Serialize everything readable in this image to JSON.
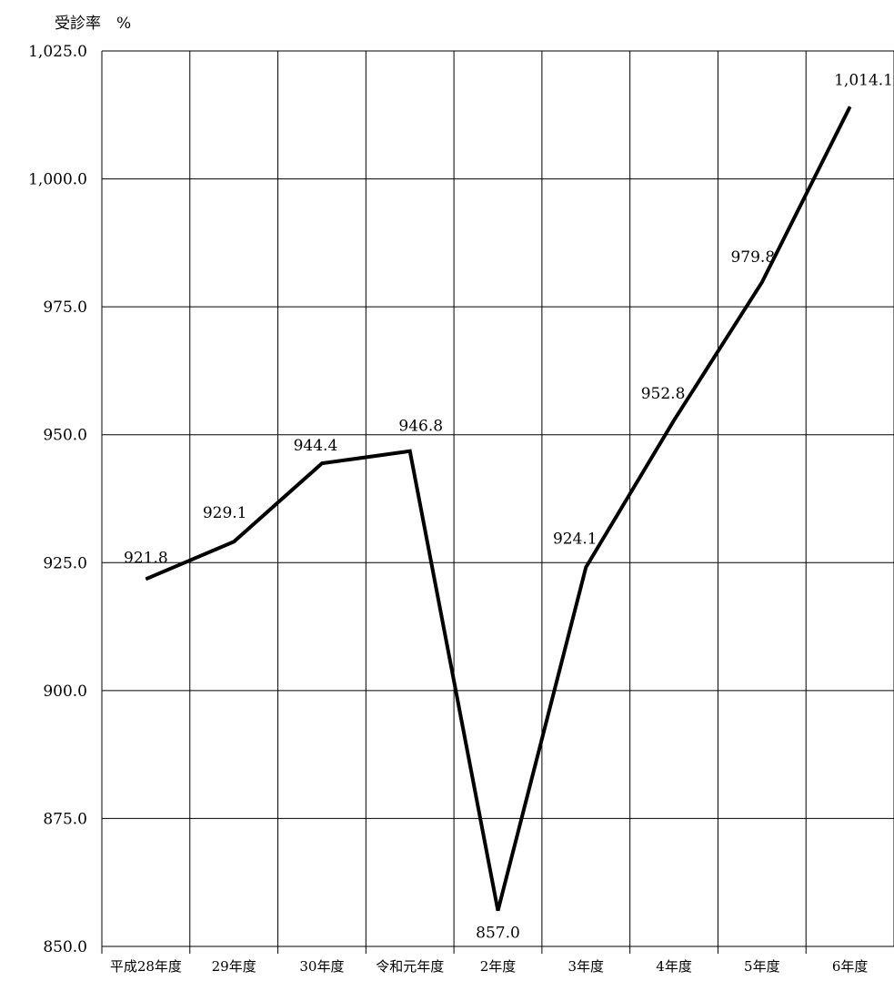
{
  "chart_data": {
    "type": "line",
    "ylabel": "受診率　%",
    "categories": [
      "平成28年度",
      "29年度",
      "30年度",
      "令和元年度",
      "2年度",
      "3年度",
      "4年度",
      "5年度",
      "6年度"
    ],
    "series": [
      {
        "values": [
          921.8,
          929.1,
          944.4,
          946.8,
          857.0,
          924.1,
          952.8,
          979.8,
          1014.1
        ]
      }
    ],
    "data_labels": [
      "921.8",
      "929.1",
      "944.4",
      "946.8",
      "857.0",
      "924.1",
      "952.8",
      "979.8",
      "1,014.1"
    ],
    "y_ticks": [
      850,
      875,
      900,
      925,
      950,
      975,
      1000,
      1025
    ],
    "y_tick_labels": [
      "850.0",
      "875.0",
      "900.0",
      "925.0",
      "950.0",
      "975.0",
      "1,000.0",
      "1,025.0"
    ],
    "ylim": [
      850,
      1025
    ],
    "grid": true,
    "line_color": "#000000"
  }
}
